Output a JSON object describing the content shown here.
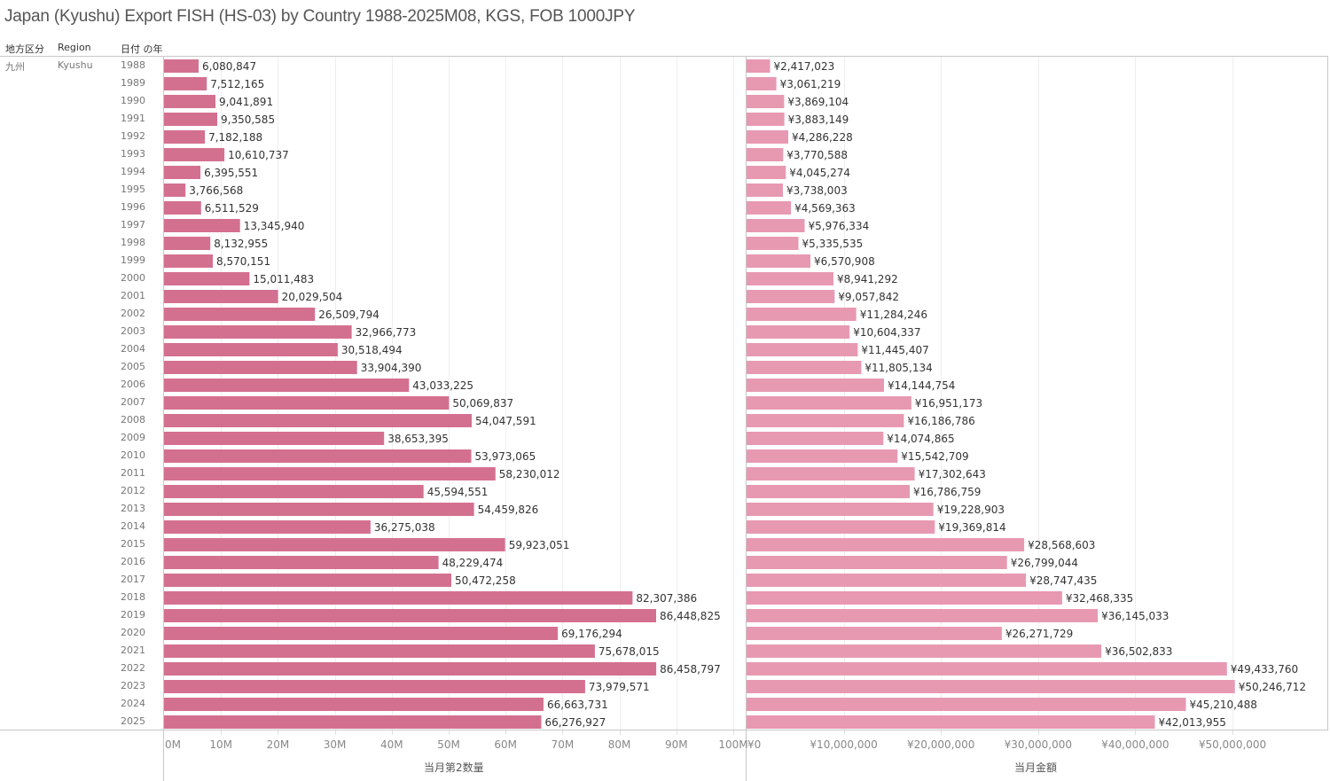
{
  "title": "Japan (Kyushu) Export FISH (HS-03) by Country 1988-2025M08, KGS, FOB 1000JPY",
  "headers": {
    "col1": "地方区分",
    "col2": "Region",
    "col3": "日付 の年"
  },
  "row_header": {
    "region_jp": "九州",
    "region_en": "Kyushu"
  },
  "colors": {
    "quantity_bar": "#d4708f",
    "amount_bar": "#e899b2"
  },
  "chart_data": [
    {
      "type": "bar",
      "orientation": "horizontal",
      "title": "",
      "xlabel": "当月第2数量",
      "ylabel": "日付 の年",
      "xlim": [
        0,
        100000000
      ],
      "x_ticks": [
        "0M",
        "10M",
        "20M",
        "30M",
        "40M",
        "50M",
        "60M",
        "70M",
        "80M",
        "90M",
        "100M"
      ],
      "grid": true,
      "categories": [
        "1988",
        "1989",
        "1990",
        "1991",
        "1992",
        "1993",
        "1994",
        "1995",
        "1996",
        "1997",
        "1998",
        "1999",
        "2000",
        "2001",
        "2002",
        "2003",
        "2004",
        "2005",
        "2006",
        "2007",
        "2008",
        "2009",
        "2010",
        "2011",
        "2012",
        "2013",
        "2014",
        "2015",
        "2016",
        "2017",
        "2018",
        "2019",
        "2020",
        "2021",
        "2022",
        "2023",
        "2024",
        "2025"
      ],
      "values": [
        6080847,
        7512165,
        9041891,
        9350585,
        7182188,
        10610737,
        6395551,
        3766568,
        6511529,
        13345940,
        8132955,
        8570151,
        15011483,
        20029504,
        26509794,
        32966773,
        30518494,
        33904390,
        43033225,
        50069837,
        54047591,
        38653395,
        53973065,
        58230012,
        45594551,
        54459826,
        36275038,
        59923051,
        48229474,
        50472258,
        82307386,
        86448825,
        69176294,
        75678015,
        86458797,
        73979571,
        66663731,
        66276927
      ],
      "labels": [
        "6,080,847",
        "7,512,165",
        "9,041,891",
        "9,350,585",
        "7,182,188",
        "10,610,737",
        "6,395,551",
        "3,766,568",
        "6,511,529",
        "13,345,940",
        "8,132,955",
        "8,570,151",
        "15,011,483",
        "20,029,504",
        "26,509,794",
        "32,966,773",
        "30,518,494",
        "33,904,390",
        "43,033,225",
        "50,069,837",
        "54,047,591",
        "38,653,395",
        "53,973,065",
        "58,230,012",
        "45,594,551",
        "54,459,826",
        "36,275,038",
        "59,923,051",
        "48,229,474",
        "50,472,258",
        "82,307,386",
        "86,448,825",
        "69,176,294",
        "75,678,015",
        "86,458,797",
        "73,979,571",
        "66,663,731",
        "66,276,927"
      ]
    },
    {
      "type": "bar",
      "orientation": "horizontal",
      "title": "",
      "xlabel": "当月金額",
      "ylabel": "日付 の年",
      "xlim": [
        0,
        59000000
      ],
      "x_ticks": [
        "¥0",
        "¥10,000,000",
        "¥20,000,000",
        "¥30,000,000",
        "¥40,000,000",
        "¥50,000,000"
      ],
      "grid": true,
      "categories": [
        "1988",
        "1989",
        "1990",
        "1991",
        "1992",
        "1993",
        "1994",
        "1995",
        "1996",
        "1997",
        "1998",
        "1999",
        "2000",
        "2001",
        "2002",
        "2003",
        "2004",
        "2005",
        "2006",
        "2007",
        "2008",
        "2009",
        "2010",
        "2011",
        "2012",
        "2013",
        "2014",
        "2015",
        "2016",
        "2017",
        "2018",
        "2019",
        "2020",
        "2021",
        "2022",
        "2023",
        "2024",
        "2025"
      ],
      "values": [
        2417023,
        3061219,
        3869104,
        3883149,
        4286228,
        3770588,
        4045274,
        3738003,
        4569363,
        5976334,
        5335535,
        6570908,
        8941292,
        9057842,
        11284246,
        10604337,
        11445407,
        11805134,
        14144754,
        16951173,
        16186786,
        14074865,
        15542709,
        17302643,
        16786759,
        19228903,
        19369814,
        28568603,
        26799044,
        28747435,
        32468335,
        36145033,
        26271729,
        36502833,
        49433760,
        50246712,
        45210488,
        42013955
      ],
      "labels": [
        "¥2,417,023",
        "¥3,061,219",
        "¥3,869,104",
        "¥3,883,149",
        "¥4,286,228",
        "¥3,770,588",
        "¥4,045,274",
        "¥3,738,003",
        "¥4,569,363",
        "¥5,976,334",
        "¥5,335,535",
        "¥6,570,908",
        "¥8,941,292",
        "¥9,057,842",
        "¥11,284,246",
        "¥10,604,337",
        "¥11,445,407",
        "¥11,805,134",
        "¥14,144,754",
        "¥16,951,173",
        "¥16,186,786",
        "¥14,074,865",
        "¥15,542,709",
        "¥17,302,643",
        "¥16,786,759",
        "¥19,228,903",
        "¥19,369,814",
        "¥28,568,603",
        "¥26,799,044",
        "¥28,747,435",
        "¥32,468,335",
        "¥36,145,033",
        "¥26,271,729",
        "¥36,502,833",
        "¥49,433,760",
        "¥50,246,712",
        "¥45,210,488",
        "¥42,013,955"
      ]
    }
  ]
}
